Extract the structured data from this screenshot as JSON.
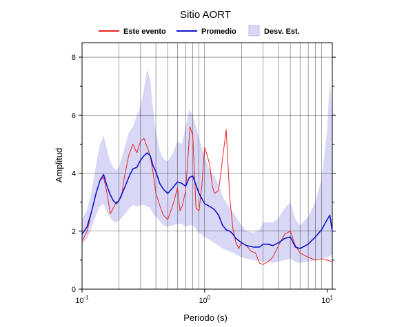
{
  "chart_data": {
    "type": "line",
    "title": "Sitio AORT",
    "xlabel": "Periodo (s)",
    "ylabel": "Amplitud",
    "xscale": "log",
    "xlim": [
      0.1,
      11
    ],
    "ylim": [
      0,
      8.5
    ],
    "yticks": [
      0,
      2,
      4,
      6,
      8
    ],
    "xtick_labels": [
      "10^-1",
      "10^0",
      "10^1"
    ],
    "grid": "vertical log grid lines and horizontal lines at y ticks",
    "legend_position": "top-center",
    "legend": [
      "Este evento",
      "Promedio",
      "Desv. Est."
    ],
    "colors": {
      "event": "#ee2222",
      "mean": "#1111cc",
      "band": "#d8d8f6"
    },
    "series": [
      {
        "name": "Este evento",
        "x": [
          0.1,
          0.11,
          0.12,
          0.13,
          0.14,
          0.15,
          0.16,
          0.17,
          0.18,
          0.19,
          0.2,
          0.21,
          0.22,
          0.24,
          0.26,
          0.28,
          0.3,
          0.32,
          0.34,
          0.36,
          0.38,
          0.4,
          0.43,
          0.46,
          0.5,
          0.53,
          0.56,
          0.6,
          0.63,
          0.66,
          0.7,
          0.73,
          0.76,
          0.8,
          0.85,
          0.9,
          0.95,
          1.0,
          1.05,
          1.1,
          1.15,
          1.2,
          1.3,
          1.4,
          1.5,
          1.6,
          1.7,
          1.8,
          1.9,
          2.0,
          2.2,
          2.4,
          2.6,
          2.8,
          3.0,
          3.3,
          3.6,
          4.0,
          4.5,
          5.0,
          5.5,
          6.0,
          7.0,
          8.0,
          9.0,
          10.0,
          11.0
        ],
        "y": [
          1.65,
          2.0,
          2.7,
          3.3,
          3.75,
          3.85,
          3.3,
          2.6,
          2.8,
          3.0,
          3.05,
          3.2,
          3.8,
          4.6,
          5.0,
          4.7,
          5.1,
          5.2,
          4.9,
          4.6,
          4.0,
          3.3,
          2.9,
          2.55,
          2.4,
          2.7,
          3.0,
          3.5,
          2.7,
          2.9,
          3.4,
          4.5,
          5.6,
          5.3,
          2.8,
          2.7,
          3.6,
          4.9,
          4.6,
          4.3,
          3.6,
          3.3,
          3.4,
          4.5,
          5.5,
          3.2,
          2.1,
          1.6,
          1.4,
          1.6,
          1.5,
          1.3,
          1.25,
          0.9,
          0.85,
          0.95,
          1.1,
          1.5,
          1.9,
          2.0,
          1.5,
          1.25,
          1.1,
          1.0,
          1.05,
          1.0,
          0.95
        ]
      },
      {
        "name": "Promedio",
        "x": [
          0.1,
          0.11,
          0.12,
          0.13,
          0.14,
          0.15,
          0.16,
          0.17,
          0.18,
          0.19,
          0.2,
          0.22,
          0.24,
          0.26,
          0.28,
          0.3,
          0.32,
          0.34,
          0.36,
          0.38,
          0.4,
          0.43,
          0.46,
          0.5,
          0.55,
          0.6,
          0.65,
          0.7,
          0.75,
          0.8,
          0.9,
          1.0,
          1.1,
          1.2,
          1.3,
          1.4,
          1.5,
          1.6,
          1.7,
          1.8,
          2.0,
          2.2,
          2.5,
          2.8,
          3.0,
          3.3,
          3.6,
          4.0,
          4.5,
          5.0,
          5.5,
          6.0,
          7.0,
          8.0,
          9.0,
          10.0,
          10.5,
          11.0
        ],
        "y": [
          1.9,
          2.15,
          2.7,
          3.3,
          3.75,
          3.95,
          3.55,
          3.25,
          3.05,
          2.95,
          3.05,
          3.45,
          3.85,
          4.15,
          4.2,
          4.45,
          4.6,
          4.7,
          4.6,
          4.25,
          4.05,
          3.65,
          3.45,
          3.3,
          3.5,
          3.7,
          3.65,
          3.55,
          3.85,
          3.9,
          3.3,
          2.95,
          2.85,
          2.75,
          2.55,
          2.2,
          2.05,
          2.0,
          1.9,
          1.75,
          1.6,
          1.5,
          1.45,
          1.45,
          1.55,
          1.55,
          1.5,
          1.6,
          1.75,
          1.8,
          1.45,
          1.4,
          1.55,
          1.8,
          2.05,
          2.4,
          2.55,
          2.0
        ]
      },
      {
        "name": "Desv. Est.",
        "x": [
          0.1,
          0.11,
          0.12,
          0.13,
          0.14,
          0.15,
          0.16,
          0.17,
          0.18,
          0.19,
          0.2,
          0.22,
          0.24,
          0.26,
          0.28,
          0.3,
          0.32,
          0.34,
          0.36,
          0.38,
          0.4,
          0.43,
          0.46,
          0.5,
          0.55,
          0.6,
          0.65,
          0.7,
          0.75,
          0.8,
          0.9,
          1.0,
          1.1,
          1.2,
          1.3,
          1.4,
          1.5,
          1.6,
          1.7,
          1.8,
          2.0,
          2.2,
          2.5,
          2.8,
          3.0,
          3.3,
          3.6,
          4.0,
          4.5,
          5.0,
          5.5,
          6.0,
          7.0,
          8.0,
          9.0,
          10.0,
          10.5,
          11.0
        ],
        "lower": [
          1.55,
          1.75,
          2.15,
          2.55,
          2.85,
          2.95,
          2.65,
          2.45,
          2.35,
          2.3,
          2.35,
          2.55,
          2.75,
          2.9,
          2.85,
          2.9,
          2.9,
          2.85,
          2.8,
          2.6,
          2.5,
          2.35,
          2.2,
          2.15,
          2.2,
          2.25,
          2.25,
          2.15,
          2.2,
          2.2,
          1.95,
          1.8,
          1.7,
          1.6,
          1.5,
          1.4,
          1.35,
          1.3,
          1.25,
          1.2,
          1.1,
          1.05,
          1.0,
          0.95,
          0.95,
          0.95,
          0.9,
          0.95,
          1.0,
          1.05,
          0.95,
          0.9,
          0.95,
          1.0,
          1.05,
          1.1,
          1.15,
          1.2
        ],
        "upper": [
          2.4,
          2.75,
          3.4,
          4.3,
          5.0,
          5.3,
          4.8,
          4.4,
          4.2,
          4.1,
          4.2,
          4.8,
          5.4,
          5.6,
          6.0,
          6.3,
          6.9,
          7.6,
          7.2,
          6.2,
          5.4,
          4.8,
          4.5,
          4.4,
          4.7,
          5.1,
          5.0,
          5.6,
          6.2,
          6.0,
          5.2,
          4.6,
          4.1,
          3.9,
          3.6,
          3.2,
          3.0,
          2.8,
          2.65,
          2.5,
          2.2,
          2.0,
          1.95,
          2.05,
          2.3,
          2.3,
          2.3,
          2.45,
          2.8,
          3.0,
          2.4,
          2.2,
          2.5,
          3.0,
          3.8,
          5.5,
          7.3,
          5.8
        ]
      }
    ]
  }
}
